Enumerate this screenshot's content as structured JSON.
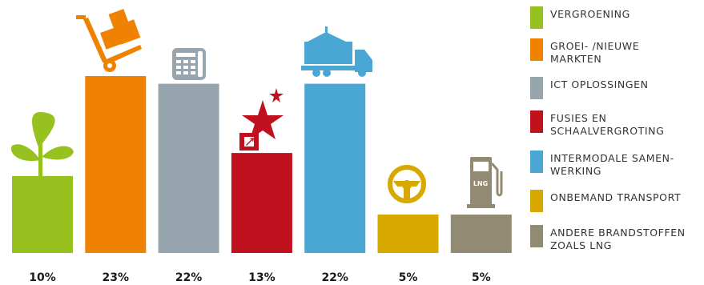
{
  "chart_data": {
    "type": "bar",
    "categories": [
      "VERGROENING",
      "GROEI- /NIEUWE\nMARKTEN",
      "ICT OPLOSSINGEN",
      "FUSIES EN\nSCHAALVERGROTING",
      "INTERMODALE SAMEN-\nWERKING",
      "ONBEMAND TRANSPORT",
      "ANDERE BRANDSTOFFEN\nZOALS LNG"
    ],
    "values": [
      10,
      23,
      22,
      13,
      22,
      5,
      5
    ],
    "value_labels": [
      "10%",
      "23%",
      "22%",
      "13%",
      "22%",
      "5%",
      "5%"
    ],
    "colors": [
      "#96c11f",
      "#ef8200",
      "#97a5ae",
      "#c0121e",
      "#4aa6d2",
      "#d6a800",
      "#928a72"
    ],
    "icons": [
      "plant-icon",
      "hand-truck-boxes-icon",
      "phone-keypad-icon",
      "star-box-icon",
      "container-truck-icon",
      "steering-wheel-icon",
      "lng-pump-icon"
    ],
    "title": "",
    "xlabel": "",
    "ylabel": "",
    "ylim": [
      0,
      23
    ],
    "grid": false,
    "legend_position": "right"
  }
}
